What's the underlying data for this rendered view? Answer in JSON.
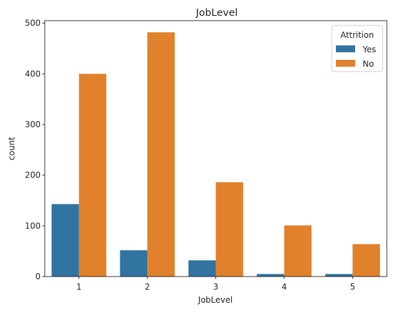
{
  "chart_data": {
    "type": "bar",
    "title": "JobLevel",
    "xlabel": "JobLevel",
    "ylabel": "count",
    "categories": [
      "1",
      "2",
      "3",
      "4",
      "5"
    ],
    "series": [
      {
        "name": "Yes",
        "color": "#3274a1",
        "values": [
          143,
          52,
          32,
          5,
          5
        ]
      },
      {
        "name": "No",
        "color": "#e1812c",
        "values": [
          400,
          482,
          186,
          101,
          64
        ]
      }
    ],
    "ylim": [
      0,
      505
    ],
    "yticks": [
      0,
      100,
      200,
      300,
      400,
      500
    ],
    "legend": {
      "title": "Attrition",
      "placement": "top-right"
    },
    "grid": false
  }
}
